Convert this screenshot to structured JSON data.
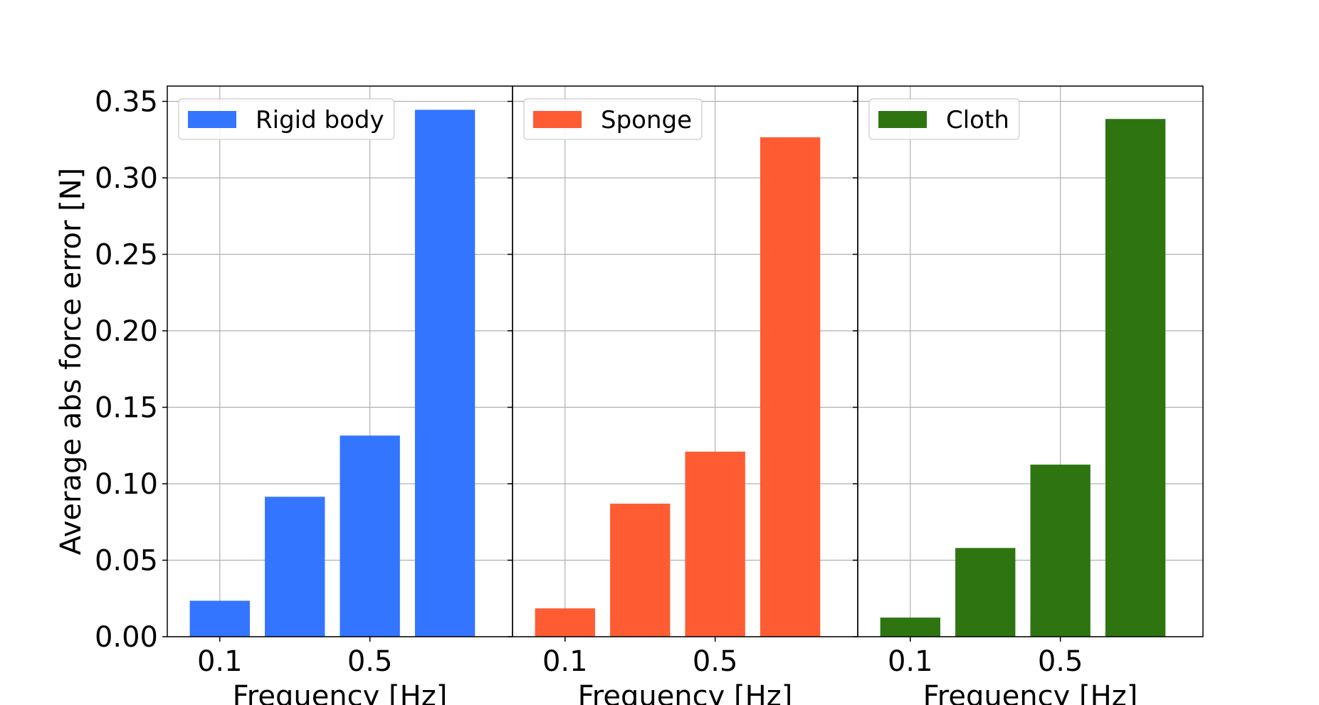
{
  "chart_data": {
    "type": "bar",
    "ylabel": "Average abs force error [N]",
    "ylim": [
      0,
      0.36
    ],
    "yticks": [
      "0.00",
      "0.05",
      "0.10",
      "0.15",
      "0.20",
      "0.25",
      "0.30",
      "0.35"
    ],
    "ytick_values": [
      0,
      0.05,
      0.1,
      0.15,
      0.2,
      0.25,
      0.3,
      0.35
    ],
    "grid": true,
    "legend_placement": "top-left",
    "xtick_labels": [
      "0.1",
      "0.5"
    ],
    "xtick_values": [
      0.1,
      0.5
    ],
    "panels": [
      {
        "xlabel": "Frequency [Hz]",
        "series_name": "Rigid body",
        "color": "#3375FF",
        "x": [
          0.1,
          0.3,
          0.5,
          0.7
        ],
        "values": [
          0.0235,
          0.0915,
          0.1315,
          0.3445
        ]
      },
      {
        "xlabel": "Frequency [Hz]",
        "series_name": "Sponge",
        "color": "#FF5C33",
        "x": [
          0.1,
          0.3,
          0.5,
          0.7
        ],
        "values": [
          0.0185,
          0.087,
          0.121,
          0.3265
        ]
      },
      {
        "xlabel": "Frequency [Hz]",
        "series_name": "Cloth",
        "color": "#2E7512",
        "x": [
          0.1,
          0.3,
          0.5,
          0.7
        ],
        "values": [
          0.0125,
          0.058,
          0.1125,
          0.3385
        ]
      }
    ]
  }
}
